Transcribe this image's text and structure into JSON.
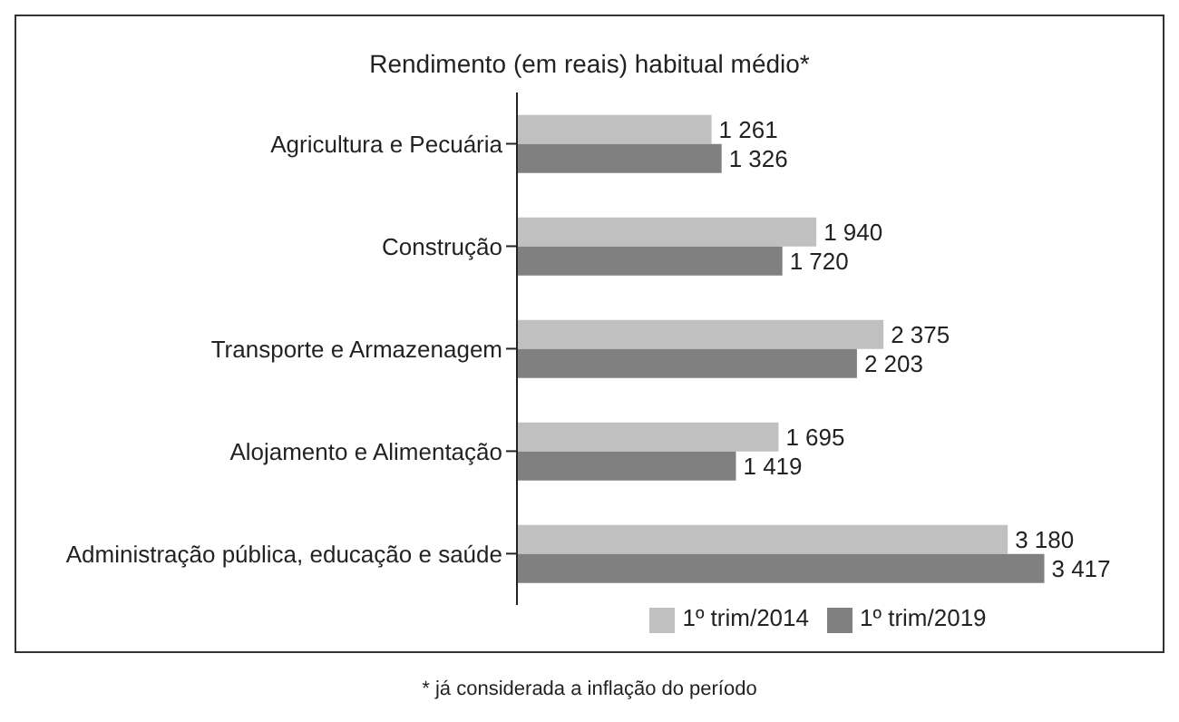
{
  "chart_data": {
    "type": "bar",
    "orientation": "horizontal",
    "title": "Rendimento (em reais) habitual médio*",
    "categories": [
      "Agricultura e Pecuária",
      "Construção",
      "Transporte e Armazenagem",
      "Alojamento e Alimentação",
      "Administração pública, educação e saúde"
    ],
    "series": [
      {
        "name": "1º trim/2014",
        "color": "#c0c0c0",
        "values": [
          1261,
          1940,
          2375,
          1695,
          3180
        ],
        "value_labels": [
          "1 261",
          "1 940",
          "2 375",
          "1 695",
          "3 180"
        ]
      },
      {
        "name": "1º trim/2019",
        "color": "#808080",
        "values": [
          1326,
          1720,
          2203,
          1419,
          3417
        ],
        "value_labels": [
          "1 326",
          "1 720",
          "2 203",
          "1 419",
          "3 417"
        ]
      }
    ],
    "legend": "bottom",
    "annotations": [
      "* já considerada a inflação do período"
    ]
  }
}
